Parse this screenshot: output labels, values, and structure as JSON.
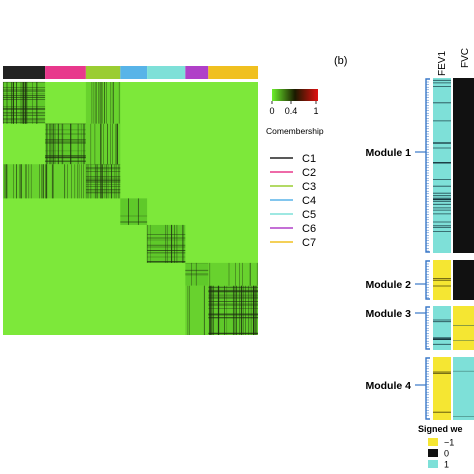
{
  "chart_data": [
    {
      "type": "heatmap",
      "panel": "a",
      "title": "",
      "colorbar": {
        "label": "Comembership",
        "ticks": [
          "0",
          "0.4",
          "1"
        ],
        "colors": [
          "#6cf02c",
          "#1a1a00",
          "#e01010"
        ]
      },
      "clusters": [
        {
          "name": "C1",
          "color": "#222222",
          "fraction": 0.165
        },
        {
          "name": "C2",
          "color": "#e8388c",
          "fraction": 0.16
        },
        {
          "name": "C3",
          "color": "#9acd32",
          "fraction": 0.135
        },
        {
          "name": "C4",
          "color": "#58b4e8",
          "fraction": 0.105
        },
        {
          "name": "C5",
          "color": "#7ee0d8",
          "fraction": 0.15
        },
        {
          "name": "C6",
          "color": "#b040c8",
          "fraction": 0.09
        },
        {
          "name": "C7",
          "color": "#f0c020",
          "fraction": 0.195
        }
      ],
      "background_color": "#7de83a",
      "block_densities": [
        0.55,
        0.45,
        0.5,
        0.12,
        0.3,
        0.12,
        0.6
      ],
      "legend_placement": "right"
    },
    {
      "type": "heatmap",
      "panel": "b",
      "panel_label": "(b)",
      "columns": [
        "FEV1",
        "FVC"
      ],
      "modules": [
        {
          "label": "Module 1",
          "FEV1": "1",
          "FVC": "0"
        },
        {
          "label": "Module 2",
          "FEV1": "-1",
          "FVC": "0"
        },
        {
          "label": "Module 3",
          "FEV1": "1",
          "FVC": "-1"
        },
        {
          "label": "Module 4",
          "FEV1": "-1",
          "FVC": "1"
        }
      ],
      "legend": {
        "title": "Signed we",
        "entries": [
          {
            "label": "−1",
            "color": "#f5e632"
          },
          {
            "label": "0",
            "color": "#111111"
          },
          {
            "label": "1",
            "color": "#7ee0d8"
          }
        ]
      }
    }
  ]
}
